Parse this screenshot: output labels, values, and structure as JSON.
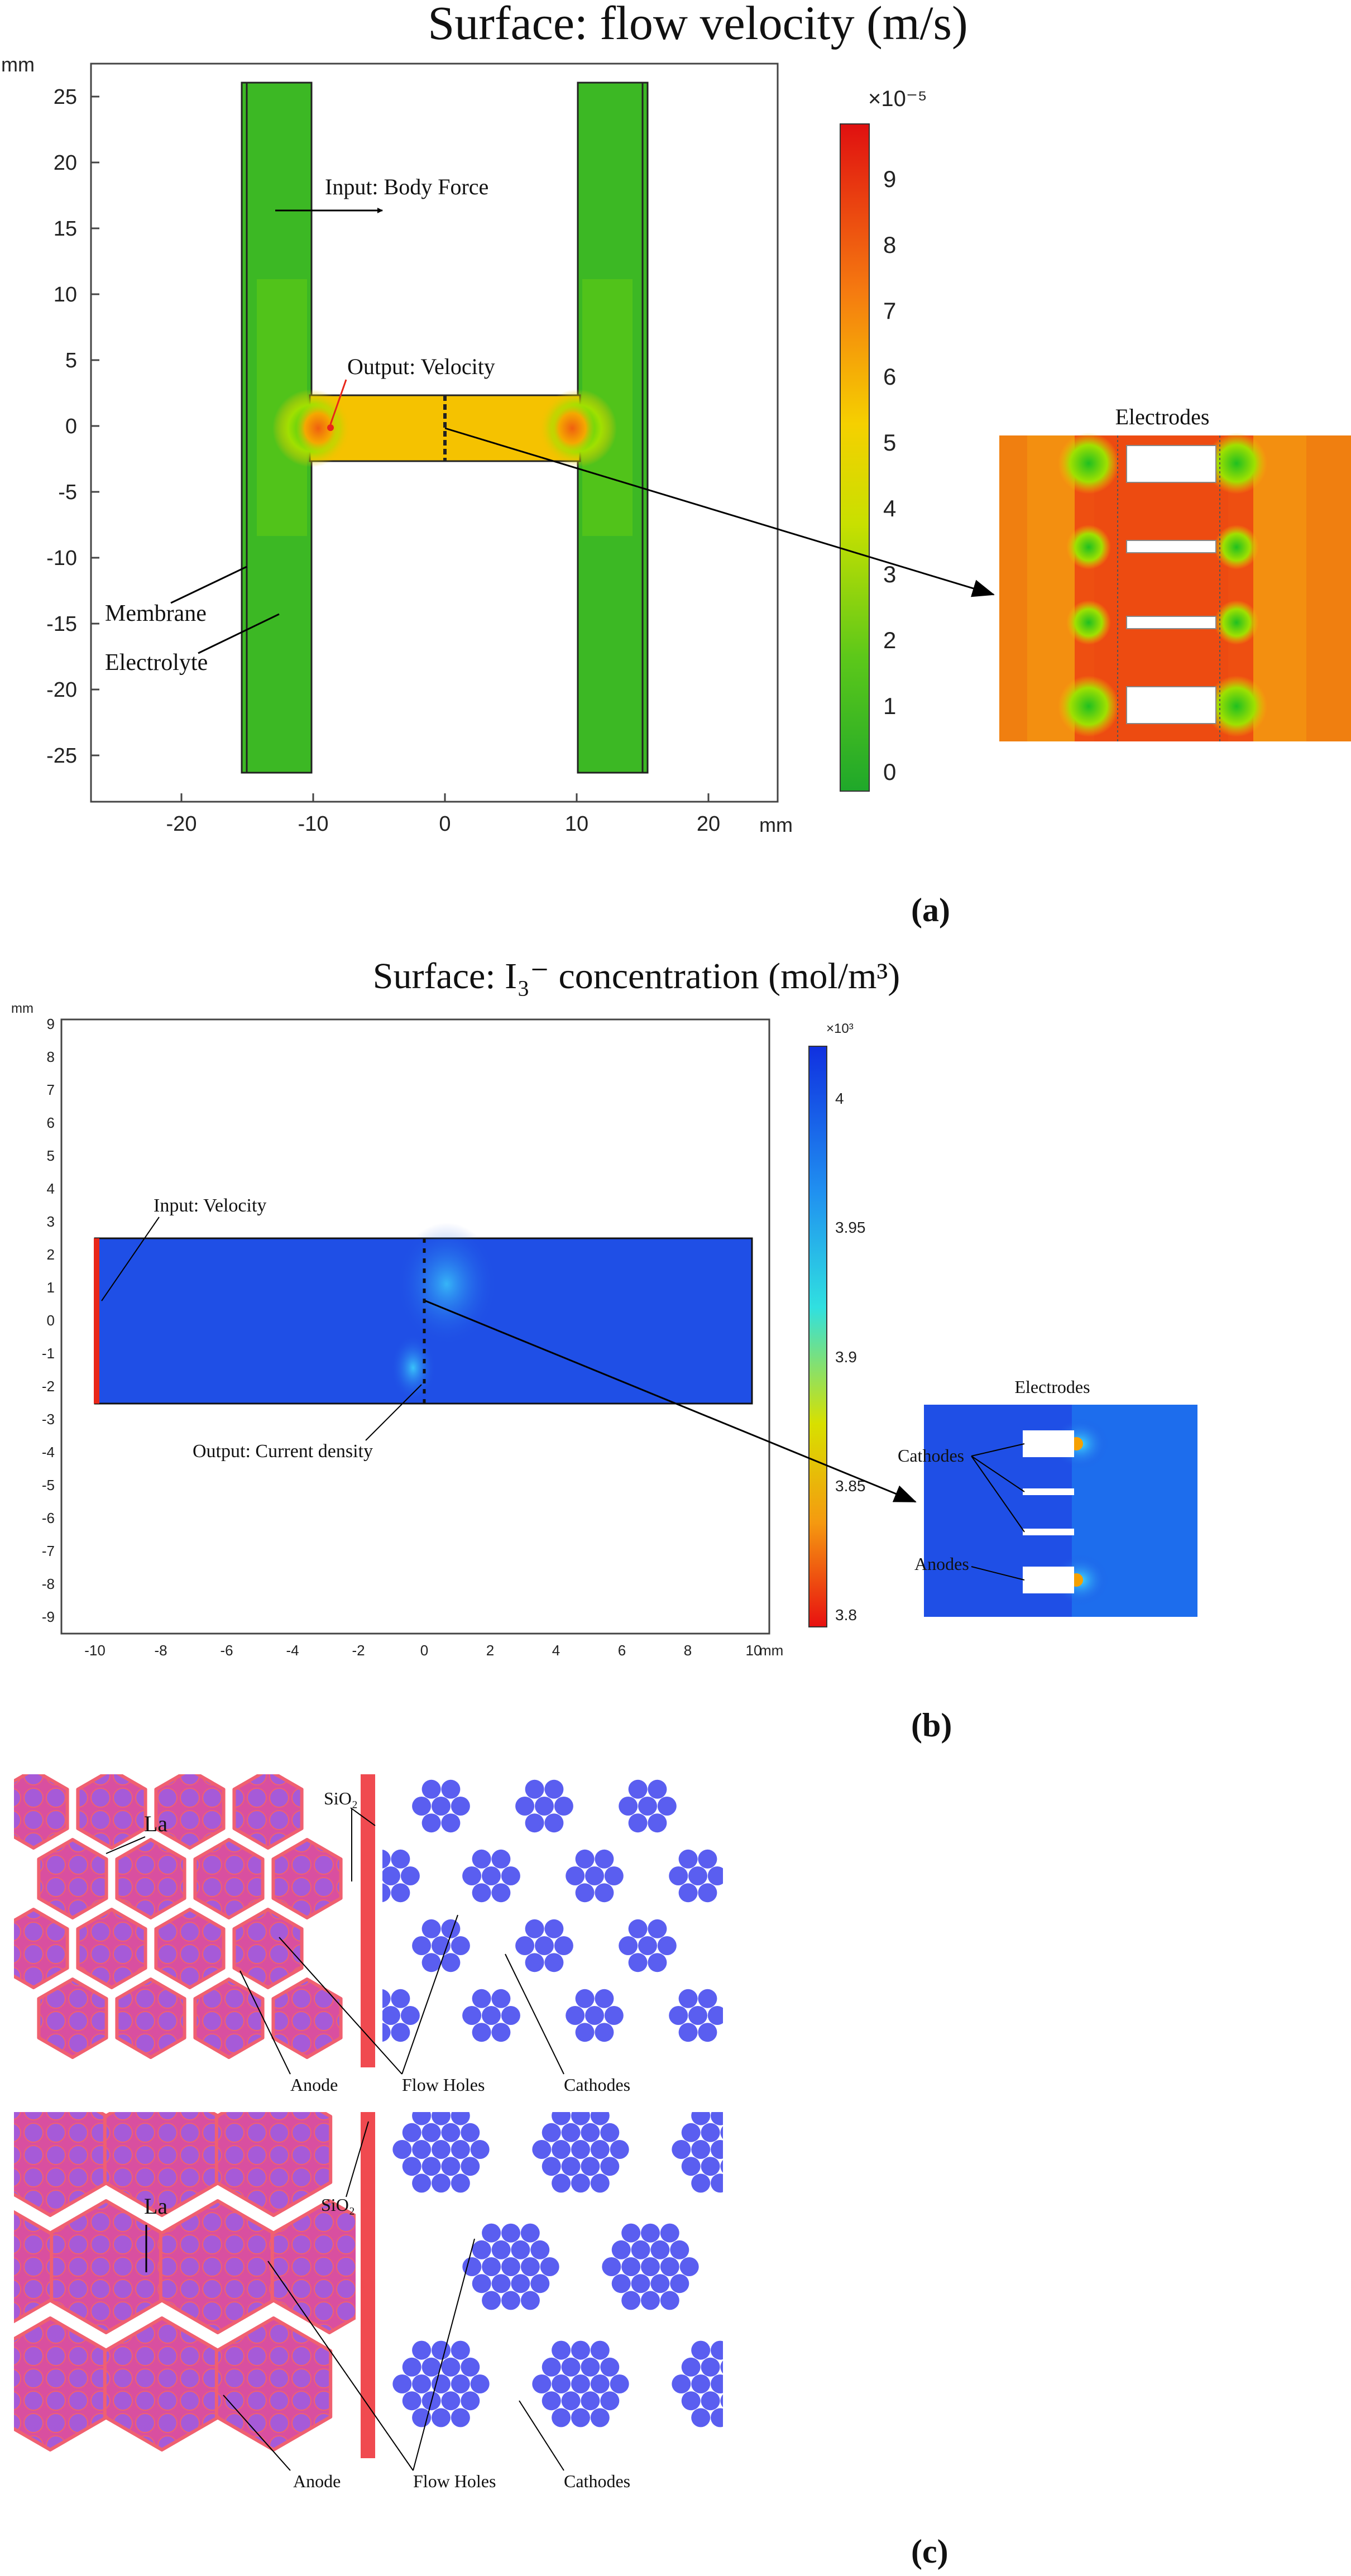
{
  "panel_a": {
    "title": "Surface: flow velocity (m/s)",
    "axis_unit": "mm",
    "y_ticks": [
      "25",
      "20",
      "15",
      "10",
      "5",
      "0",
      "-5",
      "-10",
      "-15",
      "-20",
      "-25"
    ],
    "x_ticks": [
      "-20",
      "-10",
      "0",
      "10",
      "20"
    ],
    "colorbar_exponent": "×10⁻⁵",
    "colorbar_ticks": [
      "9",
      "8",
      "7",
      "6",
      "5",
      "4",
      "3",
      "2",
      "1",
      "0"
    ],
    "annotations": {
      "input": "Input: Body Force",
      "output": "Output: Velocity",
      "membrane": "Membrane",
      "electrolyte": "Electrolyte",
      "inset_title": "Electrodes"
    },
    "label": "(a)",
    "colors": {
      "channel": "#2db81f",
      "bridge": "#f5c000",
      "hot": "#e8271a"
    }
  },
  "panel_b": {
    "title": "Surface: I₃⁻ concentration (mol/m³)",
    "axis_unit": "mm",
    "y_ticks": [
      "9",
      "8",
      "7",
      "6",
      "5",
      "4",
      "3",
      "2",
      "1",
      "0",
      "-1",
      "-2",
      "-3",
      "-4",
      "-5",
      "-6",
      "-7",
      "-8",
      "-9"
    ],
    "x_ticks": [
      "-10",
      "-8",
      "-6",
      "-4",
      "-2",
      "0",
      "2",
      "4",
      "6",
      "8",
      "10"
    ],
    "colorbar_exponent": "×10³",
    "colorbar_ticks": [
      "4",
      "3.95",
      "3.9",
      "3.85",
      "3.8"
    ],
    "annotations": {
      "input": "Input: Velocity",
      "output": "Output: Current density",
      "inset_title": "Electrodes",
      "cathodes": "Cathodes",
      "anodes": "Anodes"
    },
    "label": "(b)",
    "colors": {
      "field": "#1f4fe6",
      "input_edge": "#e8271a"
    }
  },
  "panel_c": {
    "top": {
      "la": "La",
      "sio2": "SiO₂",
      "anode": "Anode",
      "flow_holes": "Flow Holes",
      "cathodes": "Cathodes"
    },
    "bottom": {
      "la": "La",
      "sio2": "SiO₂",
      "anode": "Anode",
      "flow_holes": "Flow Holes",
      "cathodes": "Cathodes"
    },
    "label": "(c)",
    "colors": {
      "anode_fill": "#d94fa0",
      "anode_edge": "#f06070",
      "cathode": "#5a5ef0",
      "sio2": "#f04a50"
    }
  }
}
